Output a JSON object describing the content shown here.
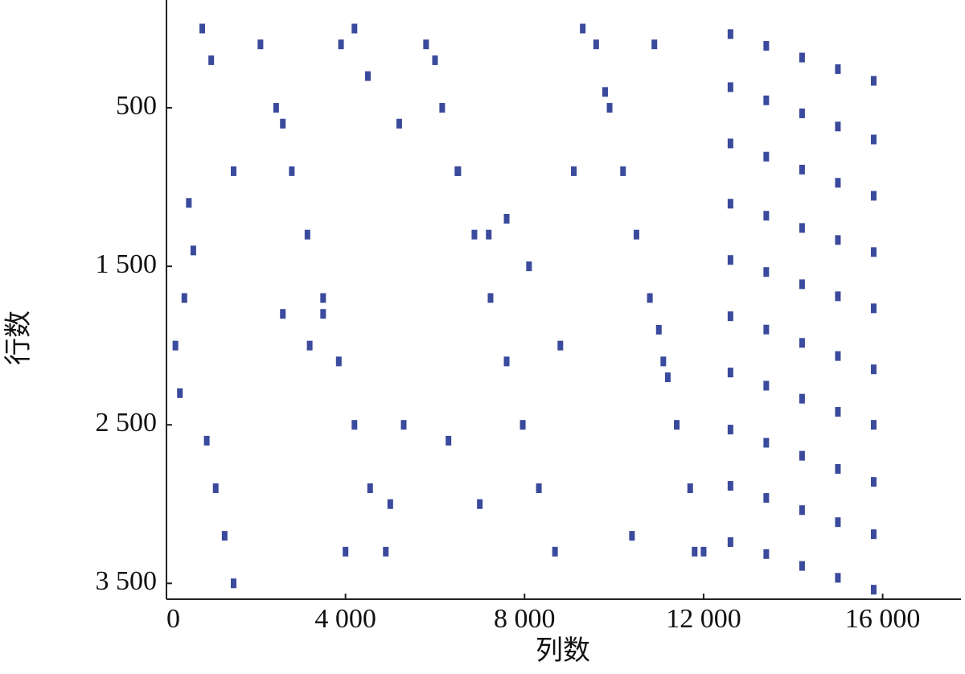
{
  "chart_data": {
    "type": "scatter",
    "x_label": "列数",
    "y_label": "行数",
    "xlim": [
      0,
      17750
    ],
    "ylim": [
      3600,
      -180
    ],
    "xticks": [
      0,
      {
        "value": 4000,
        "label": "4 000"
      },
      {
        "value": 8000,
        "label": "8 000"
      },
      {
        "value": 12000,
        "label": "12 000"
      },
      {
        "value": 16000,
        "label": "16 000"
      }
    ],
    "yticks": [
      500,
      {
        "value": 1500,
        "label": "1 500"
      },
      {
        "value": 2500,
        "label": "2 500"
      },
      {
        "value": 3500,
        "label": "3 500"
      }
    ],
    "color": "#3a4a9c",
    "x": [
      12600,
      13400,
      14200,
      15000,
      15800,
      12600,
      13400,
      14200,
      15000,
      15800,
      12600,
      13400,
      14200,
      15000,
      15800,
      12600,
      13400,
      14200,
      15000,
      15800,
      12600,
      13400,
      14200,
      15000,
      15800,
      12600,
      13400,
      14200,
      15000,
      15800,
      12600,
      13400,
      14200,
      15000,
      15800,
      12600,
      13400,
      14200,
      15000,
      15800,
      12600,
      13400,
      14200,
      15000,
      15800,
      12600,
      13400,
      14200,
      15000,
      15800,
      2100,
      2450,
      2800,
      3150,
      3500,
      3850,
      4200,
      4550,
      4900,
      5800,
      6160,
      6520,
      6880,
      7240,
      7600,
      7960,
      8320,
      8680,
      9600,
      9900,
      10200,
      10500,
      10800,
      11100,
      11400,
      11700,
      12000,
      500,
      600,
      400,
      200,
      300,
      900,
      1100,
      1300,
      1500,
      800,
      1000,
      3900,
      4200,
      4500,
      5200,
      6000,
      6500,
      7200,
      7600,
      8100,
      8800,
      9100,
      9800,
      10900,
      11000,
      3500,
      3200,
      2600,
      6300,
      5300,
      7000,
      4000,
      10400,
      11800,
      9300,
      5000,
      11200,
      1500,
      2600
    ],
    "values": [
      35,
      109,
      183,
      256,
      330,
      370,
      453,
      535,
      618,
      700,
      725,
      808,
      890,
      973,
      1055,
      1105,
      1181,
      1258,
      1334,
      1410,
      1460,
      1536,
      1613,
      1689,
      1765,
      1815,
      1899,
      1983,
      2066,
      2150,
      2170,
      2253,
      2335,
      2418,
      2500,
      2530,
      2613,
      2695,
      2778,
      2860,
      2885,
      2961,
      3038,
      3114,
      3190,
      3240,
      3315,
      3390,
      3465,
      3540,
      100,
      500,
      900,
      1300,
      1700,
      2100,
      2500,
      2900,
      3300,
      100,
      500,
      900,
      1300,
      1700,
      2100,
      2500,
      2900,
      3300,
      100,
      500,
      900,
      1300,
      1700,
      2100,
      2500,
      2900,
      3300,
      1100,
      1400,
      1700,
      2000,
      2300,
      2600,
      2900,
      3200,
      3500,
      0,
      200,
      100,
      0,
      300,
      600,
      200,
      900,
      1300,
      1200,
      1500,
      2000,
      900,
      400,
      100,
      1900,
      1800,
      2000,
      1800,
      2600,
      2500,
      3000,
      3300,
      3200,
      3300,
      0,
      3000,
      2200,
      900,
      600
    ]
  }
}
